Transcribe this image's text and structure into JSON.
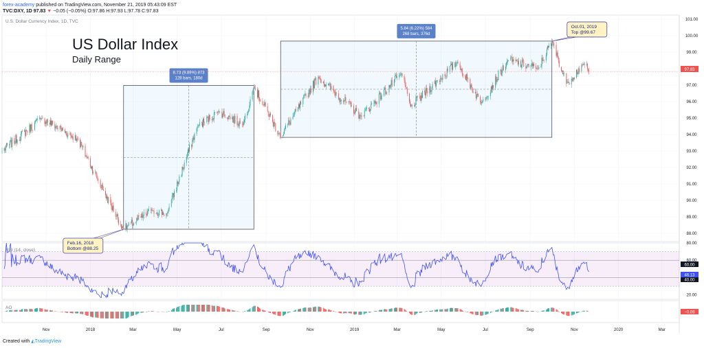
{
  "header": {
    "author": "forex-academy",
    "publish_text": "published on TradingView.com, November 21, 2019 05:43:09 EST",
    "symbol": "TVC:DXY, 1D",
    "last": "97.83",
    "change": "−0.05 (−0.05%)",
    "ohlc": "O:97.86 H:97.93 L:97.78 C:97.83"
  },
  "footer": {
    "prefix": "Created with",
    "brand": "TradingView"
  },
  "chart_data": [
    {
      "type": "candlestick",
      "series_label": "U.S. Dollar Currency Index, 1D, TVC",
      "title": "US Dollar Index",
      "subtitle": "Daily Range",
      "ylim": [
        87.5,
        101.25
      ],
      "yticks": [
        "101.00",
        "100.00",
        "99.00",
        "98.00",
        "97.00",
        "96.00",
        "95.00",
        "94.00",
        "93.00",
        "92.00",
        "91.00",
        "90.00",
        "89.00",
        "88.00"
      ],
      "last_price": "97.83",
      "x_ticks": [
        "Nov",
        "2018",
        "Mar",
        "May",
        "Jul",
        "Sep",
        "Nov",
        "2019",
        "Mar",
        "May",
        "Jul",
        "Sep",
        "Nov",
        "2020",
        "Mar"
      ],
      "anchors": [
        {
          "date": "2017-09-01",
          "value": 93.0
        },
        {
          "date": "2017-10-26",
          "value": 95.0
        },
        {
          "date": "2017-12-15",
          "value": 93.7
        },
        {
          "date": "2018-01-20",
          "value": 90.5
        },
        {
          "date": "2018-02-16",
          "value": 88.25
        },
        {
          "date": "2018-03-27",
          "value": 89.4
        },
        {
          "date": "2018-04-17",
          "value": 89.2
        },
        {
          "date": "2018-05-29",
          "value": 94.5
        },
        {
          "date": "2018-06-28",
          "value": 95.4
        },
        {
          "date": "2018-07-31",
          "value": 94.6
        },
        {
          "date": "2018-08-15",
          "value": 96.9
        },
        {
          "date": "2018-09-21",
          "value": 93.9
        },
        {
          "date": "2018-11-12",
          "value": 97.5
        },
        {
          "date": "2019-01-10",
          "value": 95.1
        },
        {
          "date": "2019-03-07",
          "value": 97.7
        },
        {
          "date": "2019-03-20",
          "value": 95.7
        },
        {
          "date": "2019-05-23",
          "value": 98.4
        },
        {
          "date": "2019-06-25",
          "value": 95.9
        },
        {
          "date": "2019-08-01",
          "value": 98.5
        },
        {
          "date": "2019-09-12",
          "value": 98.0
        },
        {
          "date": "2019-10-01",
          "value": 99.67
        },
        {
          "date": "2019-10-21",
          "value": 97.1
        },
        {
          "date": "2019-11-14",
          "value": 98.3
        },
        {
          "date": "2019-11-21",
          "value": 97.83
        }
      ],
      "ranges": [
        {
          "label1": "8.73 (9.89%) 873",
          "label2": "128 bars, 180d",
          "start": "2018-02-16",
          "end": "2018-08-15",
          "low": 88.25,
          "high": 96.98
        },
        {
          "label1": "5.84 (6.22%) 584",
          "label2": "268 bars, 376d",
          "start": "2018-09-21",
          "end": "2019-10-01",
          "low": 93.83,
          "high": 99.67
        }
      ],
      "callouts": [
        {
          "line1": "Feb.16, 2018",
          "line2": "Bottom @88.25",
          "date": "2018-02-16",
          "value": 88.25
        },
        {
          "line1": "Oct.01, 2019",
          "line2": "Top @99.67",
          "date": "2019-10-01",
          "value": 99.67
        }
      ]
    },
    {
      "type": "line",
      "series_label": "RSI (14, close)",
      "ylim": [
        15,
        80
      ],
      "yticks": [
        "80.00",
        "60.00",
        "40.00",
        "20.00"
      ],
      "band": [
        30,
        70
      ],
      "levels": [
        60,
        40
      ],
      "last_value": "46.13",
      "level_high_label": "60.00",
      "level_low_label": "40.00"
    },
    {
      "type": "bar",
      "series_label": "AO",
      "last_value": "−0.09"
    }
  ]
}
